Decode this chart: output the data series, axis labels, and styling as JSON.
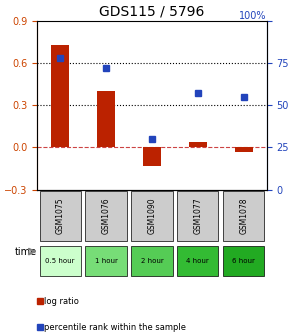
{
  "title": "GDS115 / 5796",
  "samples": [
    "GSM1075",
    "GSM1076",
    "GSM1090",
    "GSM1077",
    "GSM1078"
  ],
  "time_labels": [
    "0.5 hour",
    "1 hour",
    "2 hour",
    "4 hour",
    "6 hour"
  ],
  "time_colors": [
    "#ccffcc",
    "#88ee88",
    "#66dd66",
    "#33cc33",
    "#00bb00"
  ],
  "log_ratio": [
    0.73,
    0.4,
    -0.13,
    0.04,
    -0.03
  ],
  "percentile": [
    78,
    72,
    30,
    57,
    55
  ],
  "ylim_left": [
    -0.3,
    0.9
  ],
  "ylim_right": [
    0,
    100
  ],
  "yticks_left": [
    -0.3,
    0,
    0.3,
    0.6,
    0.9
  ],
  "yticks_right": [
    0,
    25,
    50,
    75,
    100
  ],
  "hlines": [
    0.3,
    0.6
  ],
  "bar_color": "#bb2200",
  "dot_color": "#2244bb",
  "bar_width": 0.4,
  "zero_line_color": "#cc4444",
  "grid_line_color": "#000000",
  "bg_color": "#ffffff",
  "sample_bg": "#cccccc",
  "legend_log_ratio": "log ratio",
  "legend_percentile": "percentile rank within the sample"
}
